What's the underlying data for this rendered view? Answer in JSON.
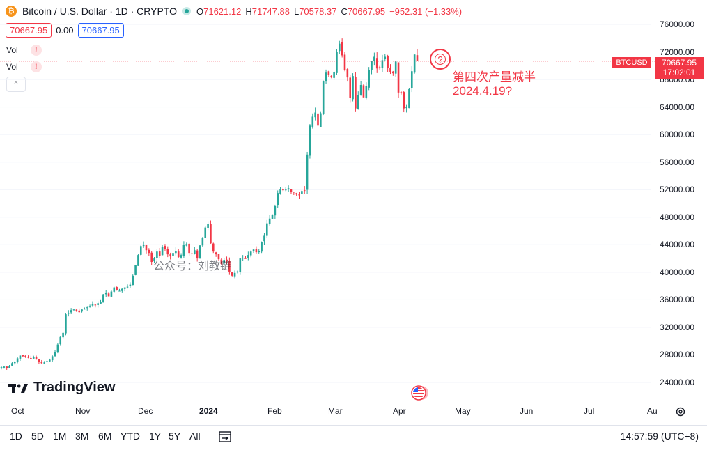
{
  "header": {
    "symbol_icon": "₿",
    "title": "Bitcoin / U.S. Dollar · 1D · CRYPTO",
    "open_label": "O",
    "open": "71621.12",
    "high_label": "H",
    "high": "71747.88",
    "low_label": "L",
    "low": "70578.37",
    "close_label": "C",
    "close": "70667.95",
    "change": "−952.31 (−1.33%)"
  },
  "price_row": {
    "bid": "70667.95",
    "spread": "0.00",
    "ask": "70667.95"
  },
  "indicators": [
    {
      "label": "Vol",
      "status_icon": "!"
    },
    {
      "label": "Vol",
      "status_icon": "!"
    }
  ],
  "collapse_icon": "^",
  "price_axis": {
    "ticks": [
      "76000.00",
      "72000.00",
      "68000.00",
      "64000.00",
      "60000.00",
      "56000.00",
      "52000.00",
      "48000.00",
      "44000.00",
      "40000.00",
      "36000.00",
      "32000.00",
      "28000.00",
      "24000.00"
    ],
    "symbol_tag": "BTCUSD",
    "last_price": "70667.95",
    "countdown": "17:02:01"
  },
  "time_axis": {
    "ticks": [
      "Oct",
      "Nov",
      "Dec",
      "2024",
      "Feb",
      "Mar",
      "Apr",
      "May",
      "Jun",
      "Jul",
      "Au"
    ]
  },
  "annotation": {
    "marker": "?",
    "line1": "第四次产量减半",
    "line2": "2024.4.19?"
  },
  "watermark": "公众号：刘教链",
  "logo": {
    "text": "TradingView"
  },
  "colors": {
    "up": "#26a69a",
    "down": "#f23645",
    "accent": "#2962ff"
  },
  "timeframes": [
    "1D",
    "5D",
    "1M",
    "3M",
    "6M",
    "YTD",
    "1Y",
    "5Y",
    "All"
  ],
  "clock": "14:57:59 (UTC+8)",
  "chart_data": {
    "type": "candlestick",
    "ylim": [
      22000,
      78000
    ],
    "x_start": "2023-09-24",
    "x_end": "2024-08-03",
    "last_price": 70667.95,
    "closes": [
      26200,
      26300,
      26100,
      26400,
      26800,
      27000,
      27500,
      27900,
      27800,
      27700,
      27600,
      27500,
      27700,
      27400,
      27000,
      26800,
      26900,
      27100,
      27300,
      27800,
      28400,
      29500,
      30600,
      31200,
      33900,
      34100,
      34500,
      34600,
      34400,
      34200,
      34600,
      34700,
      34900,
      35100,
      35400,
      35200,
      35500,
      35700,
      36800,
      37000,
      36500,
      37200,
      37800,
      37400,
      37300,
      37600,
      37800,
      37900,
      38200,
      39500,
      41000,
      42500,
      43800,
      44000,
      43200,
      42800,
      41500,
      42000,
      43000,
      42400,
      43700,
      43400,
      42600,
      42300,
      42800,
      43100,
      42200,
      42500,
      44000,
      44100,
      42800,
      42700,
      43200,
      42000,
      43900,
      45000,
      46500,
      47000,
      44200,
      43000,
      42600,
      41900,
      41200,
      41800,
      41700,
      40000,
      39500,
      39900,
      40100,
      42000,
      42100,
      42000,
      42500,
      43000,
      43300,
      42900,
      43100,
      44400,
      45300,
      47100,
      47800,
      48300,
      49600,
      51500,
      52100,
      51900,
      52000,
      52200,
      51700,
      51600,
      51300,
      51200,
      51800,
      51900,
      57100,
      61300,
      62600,
      63200,
      61300,
      63100,
      67800,
      69000,
      68700,
      68300,
      69100,
      72000,
      73200,
      71500,
      69400,
      68300,
      65300,
      68500,
      63800,
      65700,
      67200,
      65400,
      67000,
      69400,
      70700,
      71300,
      69600,
      69700,
      70800,
      71300,
      69700,
      69100,
      68900,
      70600,
      66100,
      66000,
      63800,
      64000,
      66600,
      69200,
      71621,
      70668
    ]
  }
}
